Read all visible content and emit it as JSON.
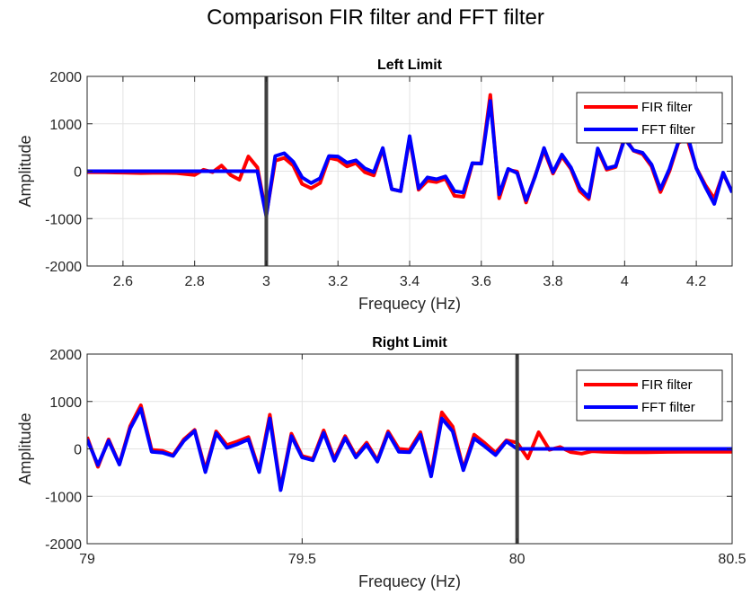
{
  "figure": {
    "title": "Comparison FIR filter and FFT filter"
  },
  "colors": {
    "fir": "#ff0000",
    "fft": "#0000ff",
    "marker": "#404040",
    "grid": "#e3e3e3",
    "axis": "#262626"
  },
  "chart_data": [
    {
      "type": "line",
      "title": "Left Limit",
      "xlabel": "Frequecy (Hz)",
      "ylabel": "Amplitude",
      "xlim": [
        2.5,
        4.3
      ],
      "ylim": [
        -2000,
        2000
      ],
      "xticks": [
        2.6,
        2.8,
        3,
        3.2,
        3.4,
        3.6,
        3.8,
        4,
        4.2
      ],
      "xtick_labels": [
        "2.6",
        "2.8",
        "3",
        "3.2",
        "3.4",
        "3.6",
        "3.8",
        "4",
        "4.2"
      ],
      "yticks": [
        -2000,
        -1000,
        0,
        1000,
        2000
      ],
      "ytick_labels": [
        "-2000",
        "-1000",
        "0",
        "1000",
        "2000"
      ],
      "grid": true,
      "legend": "top-right",
      "vline": 3.0,
      "series": [
        {
          "name": "FIR filter",
          "color": "#ff0000",
          "x": [
            2.5,
            2.55,
            2.6,
            2.65,
            2.7,
            2.75,
            2.8,
            2.825,
            2.85,
            2.875,
            2.9,
            2.925,
            2.95,
            2.975,
            3.0,
            3.025,
            3.05,
            3.075,
            3.1,
            3.125,
            3.15,
            3.175,
            3.2,
            3.225,
            3.25,
            3.275,
            3.3,
            3.325,
            3.35,
            3.375,
            3.4,
            3.425,
            3.45,
            3.475,
            3.5,
            3.525,
            3.55,
            3.575,
            3.6,
            3.625,
            3.65,
            3.675,
            3.7,
            3.725,
            3.75,
            3.775,
            3.8,
            3.825,
            3.85,
            3.875,
            3.9,
            3.925,
            3.95,
            3.975,
            4.0,
            4.025,
            4.05,
            4.075,
            4.1,
            4.125,
            4.15,
            4.175,
            4.2,
            4.225,
            4.25,
            4.275,
            4.3
          ],
          "y": [
            -20,
            -25,
            -30,
            -40,
            -35,
            -40,
            -80,
            30,
            -20,
            120,
            -80,
            -180,
            310,
            80,
            -920,
            220,
            280,
            120,
            -270,
            -360,
            -250,
            280,
            240,
            100,
            170,
            -20,
            -90,
            470,
            -380,
            -420,
            700,
            -390,
            -200,
            -230,
            -160,
            -520,
            -540,
            160,
            170,
            1610,
            -570,
            30,
            -10,
            -660,
            -100,
            440,
            -50,
            310,
            50,
            -420,
            -590,
            450,
            30,
            90,
            720,
            430,
            360,
            100,
            -440,
            0,
            600,
            680,
            70,
            -290,
            -580,
            -50,
            -440
          ]
        },
        {
          "name": "FFT filter",
          "color": "#0000ff",
          "x": [
            2.5,
            2.55,
            2.6,
            2.65,
            2.7,
            2.75,
            2.8,
            2.825,
            2.85,
            2.875,
            2.9,
            2.925,
            2.95,
            2.975,
            3.0,
            3.025,
            3.05,
            3.075,
            3.1,
            3.125,
            3.15,
            3.175,
            3.2,
            3.225,
            3.25,
            3.275,
            3.3,
            3.325,
            3.35,
            3.375,
            3.4,
            3.425,
            3.45,
            3.475,
            3.5,
            3.525,
            3.55,
            3.575,
            3.6,
            3.625,
            3.65,
            3.675,
            3.7,
            3.725,
            3.75,
            3.775,
            3.8,
            3.825,
            3.85,
            3.875,
            3.9,
            3.925,
            3.95,
            3.975,
            4.0,
            4.025,
            4.05,
            4.075,
            4.1,
            4.125,
            4.15,
            4.175,
            4.2,
            4.225,
            4.25,
            4.275,
            4.3
          ],
          "y": [
            0,
            0,
            0,
            0,
            0,
            0,
            0,
            0,
            0,
            0,
            0,
            0,
            0,
            0,
            -950,
            320,
            380,
            200,
            -130,
            -250,
            -150,
            320,
            310,
            180,
            230,
            60,
            -20,
            490,
            -380,
            -420,
            740,
            -360,
            -130,
            -170,
            -110,
            -420,
            -450,
            170,
            160,
            1480,
            -490,
            50,
            -40,
            -610,
            -120,
            490,
            -20,
            350,
            80,
            -350,
            -550,
            480,
            60,
            110,
            680,
            440,
            390,
            140,
            -380,
            50,
            620,
            780,
            60,
            -330,
            -690,
            -30,
            -450
          ]
        }
      ]
    },
    {
      "type": "line",
      "title": "Right Limit",
      "xlabel": "Frequecy (Hz)",
      "ylabel": "Amplitude",
      "xlim": [
        79,
        80.5
      ],
      "ylim": [
        -2000,
        2000
      ],
      "xticks": [
        79,
        79.5,
        80,
        80.5
      ],
      "xtick_labels": [
        "79",
        "79.5",
        "80",
        "80.5"
      ],
      "yticks": [
        -2000,
        -1000,
        0,
        1000,
        2000
      ],
      "ytick_labels": [
        "-2000",
        "-1000",
        "0",
        "1000",
        "2000"
      ],
      "grid": true,
      "legend": "top-right",
      "vline": 80.0,
      "series": [
        {
          "name": "FIR filter",
          "color": "#ff0000",
          "x": [
            79.0,
            79.025,
            79.05,
            79.075,
            79.1,
            79.125,
            79.15,
            79.175,
            79.2,
            79.225,
            79.25,
            79.275,
            79.3,
            79.325,
            79.35,
            79.375,
            79.4,
            79.425,
            79.45,
            79.475,
            79.5,
            79.525,
            79.55,
            79.575,
            79.6,
            79.625,
            79.65,
            79.675,
            79.7,
            79.725,
            79.75,
            79.775,
            79.8,
            79.825,
            79.85,
            79.875,
            79.9,
            79.925,
            79.95,
            79.975,
            80.0,
            80.025,
            80.05,
            80.075,
            80.1,
            80.125,
            80.15,
            80.175,
            80.2,
            80.25,
            80.3,
            80.35,
            80.4,
            80.45,
            80.5
          ],
          "y": [
            250,
            -380,
            200,
            -320,
            480,
            920,
            -20,
            -40,
            -130,
            200,
            400,
            -440,
            370,
            80,
            160,
            250,
            -450,
            720,
            -830,
            320,
            -150,
            -210,
            390,
            -210,
            270,
            -150,
            130,
            -240,
            370,
            0,
            -20,
            350,
            -540,
            770,
            470,
            -420,
            300,
            120,
            -80,
            180,
            130,
            -200,
            350,
            -20,
            40,
            -70,
            -100,
            -50,
            -60,
            -70,
            -70,
            -65,
            -60,
            -60,
            -60
          ]
        },
        {
          "name": "FFT filter",
          "color": "#0000ff",
          "x": [
            79.0,
            79.025,
            79.05,
            79.075,
            79.1,
            79.125,
            79.15,
            79.175,
            79.2,
            79.225,
            79.25,
            79.275,
            79.3,
            79.325,
            79.35,
            79.375,
            79.4,
            79.425,
            79.45,
            79.475,
            79.5,
            79.525,
            79.55,
            79.575,
            79.6,
            79.625,
            79.65,
            79.675,
            79.7,
            79.725,
            79.75,
            79.775,
            79.8,
            79.825,
            79.85,
            79.875,
            79.9,
            79.925,
            79.95,
            79.975,
            80.0,
            80.025,
            80.05,
            80.075,
            80.1,
            80.125,
            80.15,
            80.175,
            80.2,
            80.25,
            80.3,
            80.35,
            80.4,
            80.45,
            80.5
          ],
          "y": [
            200,
            -340,
            170,
            -330,
            430,
            850,
            -60,
            -80,
            -150,
            170,
            380,
            -490,
            330,
            20,
            100,
            200,
            -490,
            640,
            -870,
            270,
            -180,
            -240,
            340,
            -250,
            230,
            -180,
            90,
            -270,
            330,
            -60,
            -70,
            300,
            -580,
            640,
            370,
            -450,
            220,
            50,
            -130,
            160,
            0,
            0,
            0,
            0,
            0,
            0,
            0,
            0,
            0,
            0,
            0,
            0,
            0,
            0,
            0
          ]
        }
      ]
    }
  ]
}
